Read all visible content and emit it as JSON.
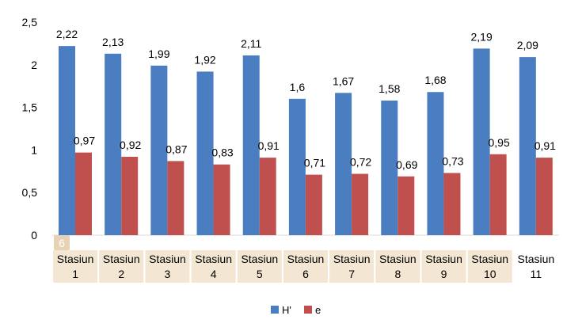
{
  "chart_data": {
    "type": "bar",
    "categories": [
      [
        "Stasiun",
        "1"
      ],
      [
        "Stasiun",
        "2"
      ],
      [
        "Stasiun",
        "3"
      ],
      [
        "Stasiun",
        "4"
      ],
      [
        "Stasiun",
        "5"
      ],
      [
        "Stasiun",
        "6"
      ],
      [
        "Stasiun",
        "7"
      ],
      [
        "Stasiun",
        "8"
      ],
      [
        "Stasiun",
        "9"
      ],
      [
        "Stasiun",
        "10"
      ],
      [
        "Stasiun",
        "11"
      ]
    ],
    "series": [
      {
        "name": "H'",
        "color": "#4A7EC1",
        "values": [
          2.22,
          2.13,
          1.99,
          1.92,
          2.11,
          1.6,
          1.67,
          1.58,
          1.68,
          2.19,
          2.09
        ],
        "labels": [
          "2,22",
          "2,13",
          "1,99",
          "1,92",
          "2,11",
          "1,6",
          "1,67",
          "1,58",
          "1,68",
          "2,19",
          "2,09"
        ]
      },
      {
        "name": "e",
        "color": "#C0504D",
        "values": [
          0.97,
          0.92,
          0.87,
          0.83,
          0.91,
          0.71,
          0.72,
          0.69,
          0.73,
          0.95,
          0.91
        ],
        "labels": [
          "0,97",
          "0,92",
          "0,87",
          "0,83",
          "0,91",
          "0,71",
          "0,72",
          "0,69",
          "0,73",
          "0,95",
          "0,91"
        ]
      }
    ],
    "yticks": [
      "0",
      "0,5",
      "1",
      "1,5",
      "2",
      "2,5"
    ],
    "ylim": [
      0,
      2.5
    ],
    "grid": false,
    "legend_position": "bottom",
    "highlight_color": "#F3E6D2",
    "overlay_badge": "6"
  }
}
